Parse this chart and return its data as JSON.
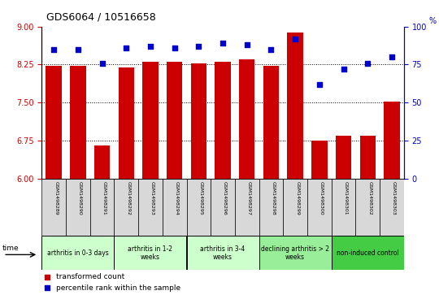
{
  "title": "GDS6064 / 10516658",
  "samples": [
    "GSM1498289",
    "GSM1498290",
    "GSM1498291",
    "GSM1498292",
    "GSM1498293",
    "GSM1498294",
    "GSM1498295",
    "GSM1498296",
    "GSM1498297",
    "GSM1498298",
    "GSM1498299",
    "GSM1498300",
    "GSM1498301",
    "GSM1498302",
    "GSM1498303"
  ],
  "bar_values": [
    8.22,
    8.22,
    6.65,
    8.2,
    8.3,
    8.3,
    8.27,
    8.3,
    8.35,
    8.22,
    8.88,
    6.75,
    6.85,
    6.85,
    7.52
  ],
  "dot_values": [
    85,
    85,
    76,
    86,
    87,
    86,
    87,
    89,
    88,
    85,
    92,
    62,
    72,
    76,
    80
  ],
  "bar_color": "#cc0000",
  "dot_color": "#0000cc",
  "ylim_left": [
    6,
    9
  ],
  "ylim_right": [
    0,
    100
  ],
  "yticks_left": [
    6,
    6.75,
    7.5,
    8.25,
    9
  ],
  "yticks_right": [
    0,
    25,
    50,
    75,
    100
  ],
  "grid_values": [
    6.75,
    7.5,
    8.25
  ],
  "groups": [
    {
      "label": "arthritis in 0-3 days",
      "start": 0,
      "end": 3
    },
    {
      "label": "arthritis in 1-2\nweeks",
      "start": 3,
      "end": 6
    },
    {
      "label": "arthritis in 3-4\nweeks",
      "start": 6,
      "end": 9
    },
    {
      "label": "declining arthritis > 2\nweeks",
      "start": 9,
      "end": 12
    },
    {
      "label": "non-induced control",
      "start": 12,
      "end": 15
    }
  ],
  "group_colors": [
    "#ccffcc",
    "#ccffcc",
    "#ccffcc",
    "#99ee99",
    "#44cc44"
  ],
  "legend_red": "transformed count",
  "legend_blue": "percentile rank within the sample",
  "left_color": "#cc0000",
  "right_color": "#0000cc",
  "sample_box_color": "#d8d8d8",
  "bar_bottom": 6
}
